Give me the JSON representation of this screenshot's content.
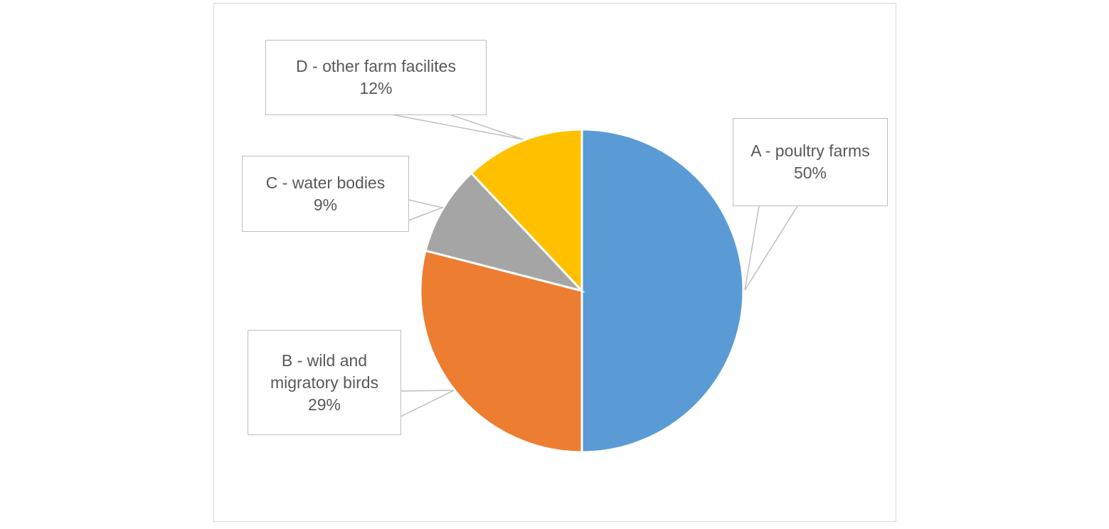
{
  "chart_data": {
    "type": "pie",
    "categories": [
      "A - poultry farms",
      "B - wild and migratory birds",
      "C - water bodies",
      "D - other farm facilites"
    ],
    "values": [
      50,
      29,
      9,
      12
    ],
    "value_labels": [
      "50%",
      "29%",
      "9%",
      "12%"
    ],
    "colors": [
      "#5b9bd5",
      "#ed7d31",
      "#a5a5a5",
      "#ffc000"
    ]
  }
}
